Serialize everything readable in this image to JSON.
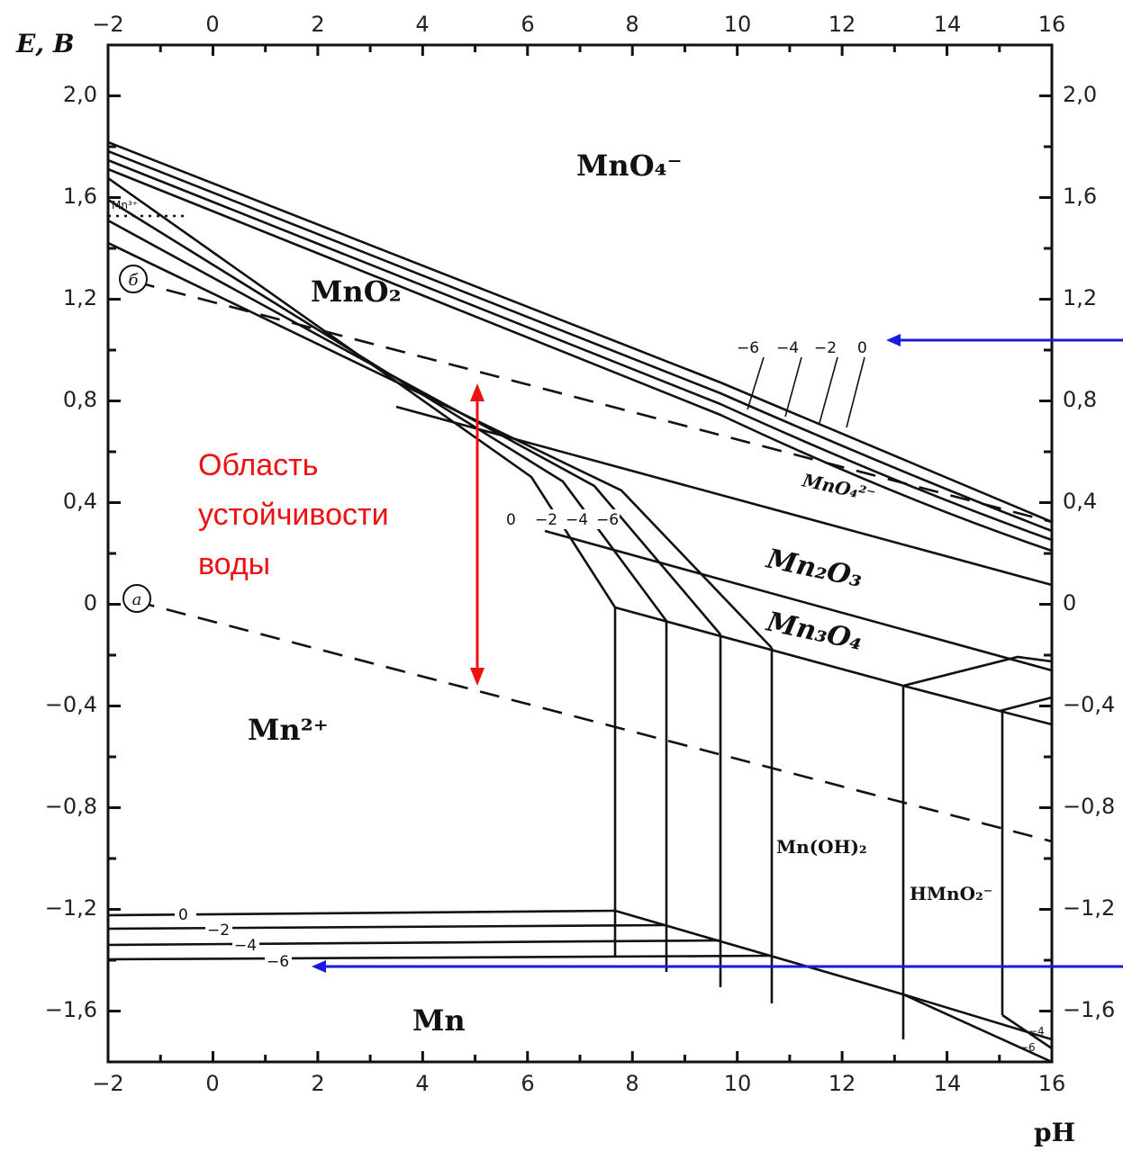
{
  "axes": {
    "y_title": "E, В",
    "x_title": "pH",
    "x_ticks": [
      "−2",
      "0",
      "2",
      "4",
      "6",
      "8",
      "10",
      "12",
      "14",
      "16"
    ],
    "y_ticks": [
      "2,0",
      "1,6",
      "1,2",
      "0,8",
      "0,4",
      "0",
      "−0,4",
      "−0,8",
      "−1,2",
      "−1,6"
    ],
    "x_range": [
      -2,
      16
    ],
    "y_range": [
      -1.8,
      2.2
    ]
  },
  "regions": {
    "mno4": "MnO₄⁻",
    "mno2": "MnO₂",
    "mn2o3": "Mn₂O₃",
    "mn3o4": "Mn₃O₄",
    "mn2plus": "Mn²⁺",
    "mnoh2": "Mn(OH)₂",
    "hmno2": "HMnO₂⁻",
    "mno4_2": "MnO₄²⁻",
    "mn": "Mn",
    "mn3plus": "Mn³⁺"
  },
  "water_lines": {
    "a_label": "a",
    "b_label": "б"
  },
  "concentration_labels": {
    "upper": [
      "−6",
      "−4",
      "−2",
      "0"
    ],
    "middle": [
      "0",
      "−2",
      "−4",
      "−6"
    ],
    "lower": [
      "0",
      "−2",
      "−4",
      "−6"
    ],
    "corner": [
      "−4",
      "−6"
    ]
  },
  "annotation": {
    "line1": "Область",
    "line2": "устойчивости",
    "line3": "воды"
  },
  "colors": {
    "annotation": "#ee1111",
    "arrow": "#1a1adc",
    "lines": "#111111"
  }
}
